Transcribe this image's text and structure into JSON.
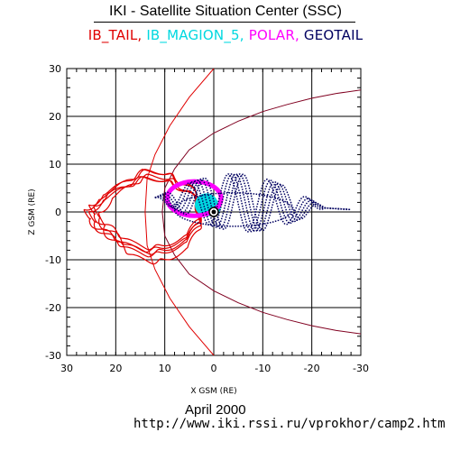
{
  "header": {
    "title": "IKI - Satellite Situation Center (SSC)",
    "satellites": [
      {
        "label": "IB_TAIL",
        "color": "#e00000"
      },
      {
        "label": "IB_MAGION_5",
        "color": "#00d8e0"
      },
      {
        "label": "POLAR",
        "color": "#ff00ff"
      },
      {
        "label": "GEOTAIL",
        "color": "#000060"
      }
    ]
  },
  "footer": {
    "date": "April    2000",
    "url": "http://www.iki.rssi.ru/vprokhor/camp2.htm"
  },
  "chart_data": {
    "type": "line",
    "xlabel": "X GSM (RE)",
    "ylabel": "Z GSM (RE)",
    "xlim": [
      30,
      -30
    ],
    "ylim": [
      -30,
      30
    ],
    "xticks": [
      30,
      20,
      10,
      0,
      -10,
      -20,
      -30
    ],
    "yticks": [
      30,
      20,
      10,
      0,
      -10,
      -20,
      -30
    ],
    "xtick_labels": [
      "30",
      "20",
      "10",
      "0",
      "-10",
      "-20",
      "-30"
    ],
    "ytick_labels": [
      "30",
      "20",
      "10",
      "0",
      "-10",
      "-20",
      "-30"
    ],
    "grid": true,
    "boundaries": [
      {
        "name": "magnetopause",
        "color": "#800020",
        "x": [
          10.5,
          10,
          8,
          5,
          0,
          -5,
          -10,
          -15,
          -20,
          -25,
          -30
        ],
        "z_north": [
          0,
          5,
          9,
          13,
          16.5,
          19,
          21,
          22.5,
          23.8,
          24.8,
          25.5
        ]
      },
      {
        "name": "bow shock",
        "color": "#e00000",
        "x": [
          14,
          13.6,
          12,
          9,
          5,
          0,
          -5,
          -10
        ],
        "z_north": [
          0,
          7,
          12,
          18,
          24,
          30,
          35,
          40
        ]
      }
    ],
    "earth": {
      "x": 0,
      "z": 0
    },
    "series": [
      {
        "name": "IB_TAIL",
        "color": "#e00000",
        "style": "line",
        "loops": [
          {
            "cx": 14,
            "cz": -1,
            "a": 11,
            "b": 8,
            "xmin": 27,
            "pull": 0.45
          },
          {
            "cx": 13.5,
            "cz": 0,
            "a": 10.5,
            "b": 8.5,
            "xmin": 26.5,
            "pull": 0.4
          },
          {
            "cx": 14.5,
            "cz": -0.5,
            "a": 11.5,
            "b": 7.5,
            "xmin": 27,
            "pull": 0.5
          },
          {
            "cx": 13,
            "cz": -1.5,
            "a": 10,
            "b": 9,
            "xmin": 25.5,
            "pull": 0.35
          },
          {
            "cx": 14,
            "cz": 0.5,
            "a": 11,
            "b": 8,
            "xmin": 26,
            "pull": 0.55
          }
        ]
      },
      {
        "name": "IB_MAGION_5",
        "color": "#00d8e0",
        "style": "filled",
        "cx": 1.5,
        "cz": 1.5,
        "rx": 2.2,
        "rz": 2.2
      },
      {
        "name": "POLAR",
        "color": "#ff00ff",
        "style": "loop",
        "cx": 4,
        "cz": 2.8,
        "rx": 5.5,
        "rz": 3.6
      },
      {
        "name": "GEOTAIL",
        "color": "#000060",
        "style": "dotted",
        "x_start": 12,
        "x_end": -28,
        "amp": 6,
        "cz": 3,
        "oscillations": 5,
        "passes": 5
      }
    ]
  }
}
